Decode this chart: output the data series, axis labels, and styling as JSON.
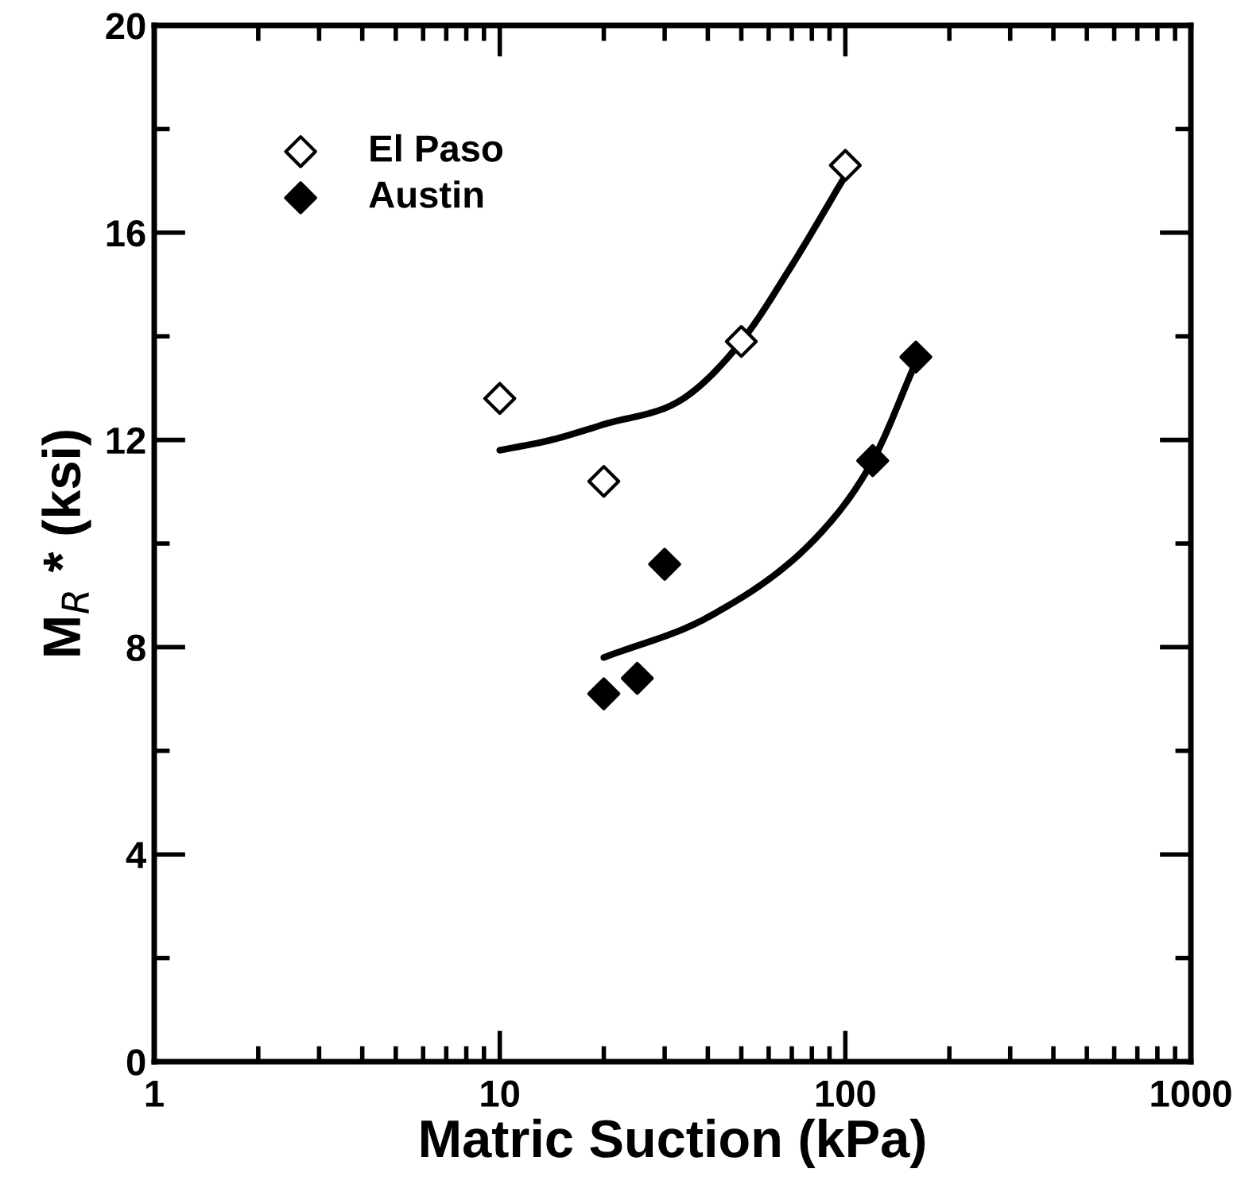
{
  "chart_data": {
    "type": "scatter",
    "xlabel": "Matric Suction (kPa)",
    "ylabel": "M$_{R}$ * (ksi)",
    "log": "x",
    "xlim": [
      1,
      1000
    ],
    "xticks": [
      1,
      10,
      100,
      1000
    ],
    "ylim": [
      0,
      20
    ],
    "yticks": [
      0,
      4,
      8,
      12,
      16,
      20
    ],
    "grid": false,
    "legend": "top left",
    "marker": "diamond",
    "series": [
      {
        "name": "El Paso",
        "color": "#ffffff",
        "x": [
          10,
          20,
          50,
          100
        ],
        "values": [
          12.8,
          11.2,
          13.9,
          17.3
        ]
      },
      {
        "name": "Austin",
        "color": "#000000",
        "x": [
          20,
          25,
          30,
          120,
          160
        ],
        "values": [
          7.1,
          7.4,
          9.6,
          11.6,
          13.6
        ]
      },
      {
        "type": "line",
        "marker": "none",
        "color": "#000000",
        "x": [
          10,
          14.1,
          20,
          34,
          50,
          69,
          100
        ],
        "values": [
          11.8,
          12.0,
          12.3,
          12.8,
          13.9,
          15.3,
          17.1
        ]
      },
      {
        "type": "line",
        "marker": "none",
        "color": "#000000",
        "x": [
          20,
          40.6,
          82,
          120,
          160
        ],
        "values": [
          7.8,
          8.6,
          10.1,
          11.6,
          13.5
        ]
      }
    ]
  }
}
